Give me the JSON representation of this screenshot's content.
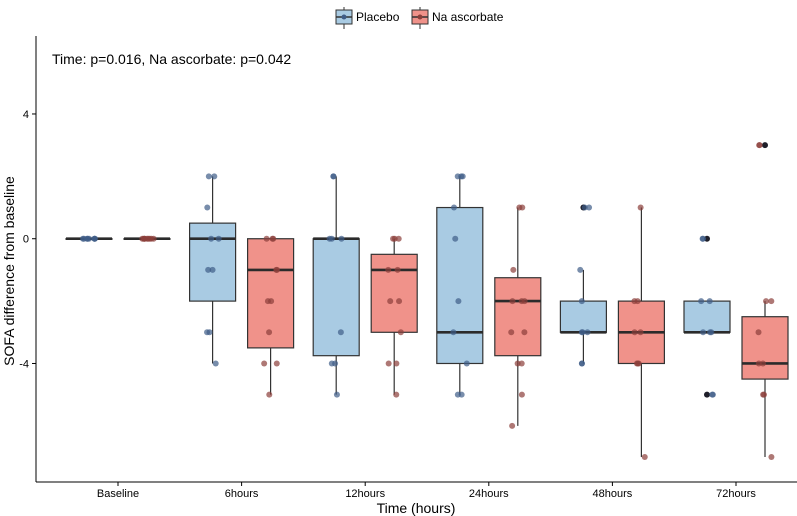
{
  "chart_data": {
    "type": "box",
    "title": "",
    "annotation": "Time: p=0.016, Na ascorbate: p=0.042",
    "xlabel": "Time (hours)",
    "ylabel": "SOFA difference from baseline",
    "categories": [
      "Baseline",
      "6hours",
      "12hours",
      "24hours",
      "48hours",
      "72hours"
    ],
    "yticks": [
      -4,
      0,
      4
    ],
    "ylim": [
      -7.8,
      6.5
    ],
    "grid": false,
    "legend_position": "top-center",
    "series": [
      {
        "name": "Placebo",
        "fill": "#a9cbe3",
        "point_color": "#3e5c87",
        "boxes": [
          {
            "q1": 0,
            "median": 0,
            "q3": 0,
            "whisker_low": 0,
            "whisker_high": 0
          },
          {
            "q1": -2,
            "median": 0,
            "q3": 0.5,
            "whisker_low": -4,
            "whisker_high": 2
          },
          {
            "q1": -3.75,
            "median": 0,
            "q3": 0,
            "whisker_low": -5,
            "whisker_high": 2
          },
          {
            "q1": -4,
            "median": -3,
            "q3": 1,
            "whisker_low": -5,
            "whisker_high": 2
          },
          {
            "q1": -3,
            "median": -3,
            "q3": -2,
            "whisker_low": -4,
            "whisker_high": -1
          },
          {
            "q1": -3,
            "median": -3,
            "q3": -2,
            "whisker_low": -3,
            "whisker_high": -2
          }
        ],
        "outliers": [
          [],
          [],
          [],
          [],
          [
            1
          ],
          [
            0,
            -5
          ]
        ],
        "points": [
          [
            0,
            0,
            0,
            0,
            0,
            0,
            0,
            0
          ],
          [
            2,
            2,
            1,
            0,
            0,
            -1,
            -1,
            -3,
            -3,
            -4
          ],
          [
            2,
            2,
            0,
            0,
            0,
            -3,
            -4,
            -4,
            -5
          ],
          [
            2,
            2,
            2,
            1,
            0,
            -2,
            -3,
            -4,
            -5,
            -5
          ],
          [
            1,
            1,
            -1,
            -2,
            -3,
            -3,
            -3,
            -4,
            -4
          ],
          [
            0,
            0,
            -2,
            -2,
            -3,
            -3,
            -3,
            -5,
            -5
          ]
        ]
      },
      {
        "name": "Na ascorbate",
        "fill": "#f0928a",
        "point_color": "#8b3f3a",
        "boxes": [
          {
            "q1": 0,
            "median": 0,
            "q3": 0,
            "whisker_low": 0,
            "whisker_high": 0
          },
          {
            "q1": -3.5,
            "median": -1,
            "q3": 0,
            "whisker_low": -5,
            "whisker_high": 0
          },
          {
            "q1": -3,
            "median": -1,
            "q3": -0.5,
            "whisker_low": -5,
            "whisker_high": 0
          },
          {
            "q1": -3.75,
            "median": -2,
            "q3": -1.25,
            "whisker_low": -6,
            "whisker_high": 1
          },
          {
            "q1": -4,
            "median": -3,
            "q3": -2,
            "whisker_low": -7,
            "whisker_high": 1
          },
          {
            "q1": -4.5,
            "median": -4,
            "q3": -2.5,
            "whisker_low": -7,
            "whisker_high": -2
          }
        ],
        "outliers": [
          [],
          [],
          [],
          [],
          [],
          [
            3
          ]
        ],
        "points": [
          [
            0,
            0,
            0,
            0,
            0,
            0,
            0,
            0,
            0
          ],
          [
            0,
            0,
            0,
            -1,
            -1,
            -2,
            -2,
            -3,
            -4,
            -4,
            -5
          ],
          [
            0,
            0,
            0,
            -1,
            -1,
            -2,
            -2,
            -3,
            -4,
            -4,
            -5
          ],
          [
            1,
            1,
            -1,
            -2,
            -2,
            -2,
            -3,
            -3,
            -4,
            -4,
            -5,
            -6
          ],
          [
            1,
            -2,
            -2,
            -3,
            -3,
            -4,
            -4,
            -4,
            -7
          ],
          [
            3,
            3,
            -2,
            -2,
            -3,
            -4,
            -4,
            -5,
            -5,
            -7
          ]
        ]
      }
    ]
  }
}
